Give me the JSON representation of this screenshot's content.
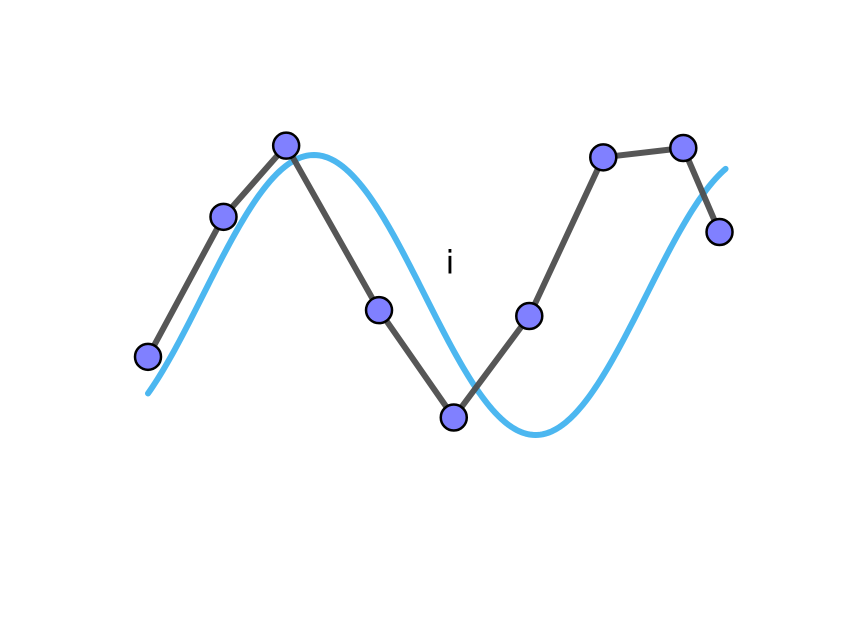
{
  "chart_data": {
    "type": "line",
    "title": "",
    "xlabel": "",
    "ylabel": "",
    "axes_visible": false,
    "grid": false,
    "legend": "none",
    "xlim": [
      0,
      8
    ],
    "ylim": [
      -1.5,
      1.5
    ],
    "annotations": [
      {
        "text": "i",
        "x": 4,
        "y": 0.28
      }
    ],
    "series": [
      {
        "kind": "sampled-points",
        "marker": "circle",
        "line_color": "#4d4d4d",
        "marker_fill": "#8080ff",
        "marker_edge": "#000000",
        "x": [
          0,
          1,
          1.83,
          3.06,
          4.05,
          5.05,
          6.03,
          7.09,
          7.57
        ],
        "y": [
          -0.53,
          0.67,
          1.28,
          -0.13,
          -1.05,
          -0.18,
          1.18,
          1.26,
          0.54
        ]
      },
      {
        "kind": "smooth-curve",
        "line_color": "#4cb7f0",
        "x_range": [
          0,
          7.65
        ],
        "amplitude": 1.2,
        "frequency": 1.07,
        "phase": -0.78
      }
    ]
  }
}
